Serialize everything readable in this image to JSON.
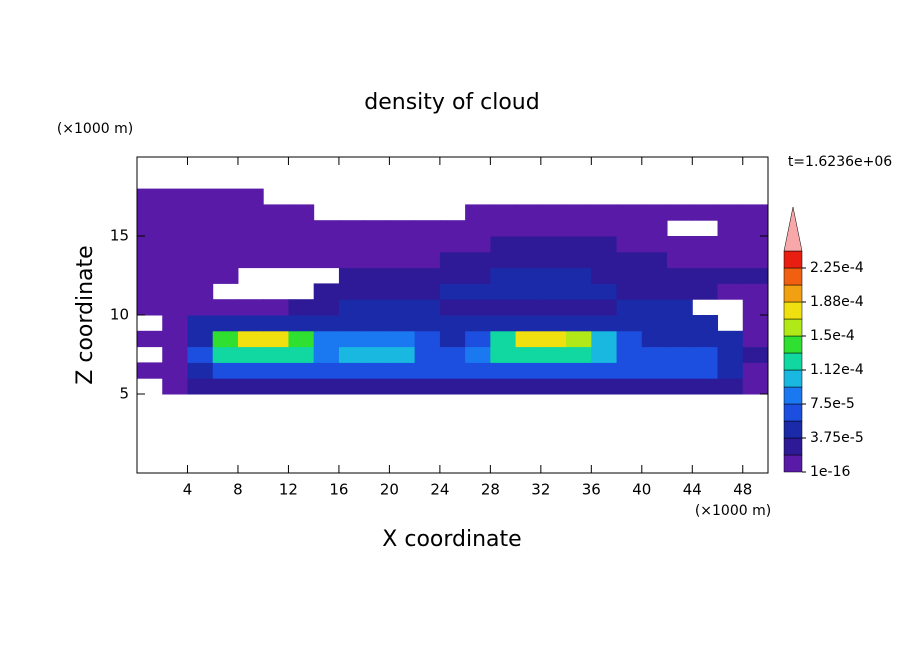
{
  "chart_data": {
    "type": "contour",
    "title": "density of cloud",
    "x_label": "X coordinate",
    "y_label": "Z coordinate",
    "x_unit": "(×1000 m)",
    "y_unit": "(×1000 m)",
    "annotation": "t=1.6236e+06",
    "xlim": [
      0,
      50
    ],
    "ylim": [
      0,
      20
    ],
    "xticks": [
      4,
      8,
      12,
      16,
      20,
      24,
      28,
      32,
      36,
      40,
      44,
      48
    ],
    "yticks": [
      5,
      10,
      15
    ],
    "x": [
      1,
      3,
      5,
      7,
      9,
      11,
      13,
      15,
      17,
      19,
      21,
      23,
      25,
      27,
      29,
      31,
      33,
      35,
      37,
      39,
      41,
      43,
      45,
      47,
      49
    ],
    "z": [
      5.5,
      6.5,
      7.5,
      8.5,
      9.5,
      10.5,
      11.5,
      12.5,
      13.5,
      14.5,
      15.5,
      16.5,
      17.5
    ],
    "values": [
      [
        null,
        5e-06,
        2e-05,
        2e-05,
        2e-05,
        2e-05,
        2e-05,
        2e-05,
        2e-05,
        2e-05,
        2e-05,
        2e-05,
        2e-05,
        2e-05,
        2e-05,
        2e-05,
        2e-05,
        2e-05,
        2e-05,
        2e-05,
        2e-05,
        2e-05,
        2e-05,
        2e-05,
        5e-06
      ],
      [
        5e-06,
        5e-06,
        4e-05,
        6e-05,
        6e-05,
        6e-05,
        6e-05,
        6e-05,
        6e-05,
        6e-05,
        6e-05,
        6e-05,
        6e-05,
        6e-05,
        6e-05,
        6e-05,
        6e-05,
        6e-05,
        6e-05,
        6e-05,
        6e-05,
        6e-05,
        6e-05,
        4e-05,
        5e-06
      ],
      [
        null,
        5e-06,
        6e-05,
        0.00013,
        0.00013,
        0.00013,
        0.00013,
        9e-05,
        0.0001,
        0.0001,
        0.0001,
        7e-05,
        6e-05,
        8e-05,
        0.00013,
        0.00013,
        0.00013,
        0.00013,
        0.0001,
        7e-05,
        7e-05,
        7e-05,
        7e-05,
        5e-05,
        2e-05
      ],
      [
        5e-06,
        5e-06,
        4e-05,
        0.00014,
        0.00017,
        0.00017,
        0.00014,
        8e-05,
        9e-05,
        9e-05,
        9e-05,
        6e-05,
        5e-05,
        6e-05,
        0.00012,
        0.00017,
        0.00017,
        0.00016,
        0.0001,
        6e-05,
        4e-05,
        4e-05,
        4e-05,
        4e-05,
        5e-06
      ],
      [
        null,
        5e-06,
        4e-05,
        4e-05,
        4e-05,
        4e-05,
        4e-05,
        4e-05,
        4e-05,
        4e-05,
        4e-05,
        4e-05,
        4e-05,
        4e-05,
        4e-05,
        4e-05,
        4e-05,
        4e-05,
        4e-05,
        4e-05,
        4e-05,
        4e-05,
        4e-05,
        null,
        5e-06
      ],
      [
        5e-06,
        5e-06,
        5e-06,
        5e-06,
        5e-06,
        5e-06,
        2e-05,
        2e-05,
        4e-05,
        4e-05,
        4e-05,
        4e-05,
        2e-05,
        2e-05,
        2e-05,
        2e-05,
        2e-05,
        2e-05,
        2e-05,
        4e-05,
        4e-05,
        4e-05,
        null,
        null,
        5e-06
      ],
      [
        5e-06,
        5e-06,
        5e-06,
        null,
        null,
        null,
        null,
        2e-05,
        2e-05,
        2e-05,
        2e-05,
        2e-05,
        4e-05,
        4e-05,
        4e-05,
        4e-05,
        4e-05,
        4e-05,
        4e-05,
        2e-05,
        2e-05,
        2e-05,
        2e-05,
        5e-06,
        5e-06
      ],
      [
        5e-06,
        5e-06,
        5e-06,
        5e-06,
        null,
        null,
        null,
        null,
        2e-05,
        2e-05,
        2e-05,
        2e-05,
        2e-05,
        2e-05,
        4e-05,
        4e-05,
        4e-05,
        4e-05,
        2e-05,
        2e-05,
        2e-05,
        2e-05,
        2e-05,
        2e-05,
        2e-05
      ],
      [
        5e-06,
        5e-06,
        5e-06,
        5e-06,
        5e-06,
        5e-06,
        5e-06,
        5e-06,
        5e-06,
        5e-06,
        5e-06,
        5e-06,
        2e-05,
        2e-05,
        2e-05,
        2e-05,
        2e-05,
        2e-05,
        2e-05,
        2e-05,
        2e-05,
        5e-06,
        5e-06,
        5e-06,
        5e-06
      ],
      [
        5e-06,
        5e-06,
        5e-06,
        5e-06,
        5e-06,
        5e-06,
        5e-06,
        5e-06,
        5e-06,
        5e-06,
        5e-06,
        5e-06,
        5e-06,
        5e-06,
        2e-05,
        2e-05,
        2e-05,
        2e-05,
        2e-05,
        5e-06,
        5e-06,
        5e-06,
        5e-06,
        5e-06,
        5e-06
      ],
      [
        5e-06,
        5e-06,
        5e-06,
        5e-06,
        5e-06,
        5e-06,
        5e-06,
        5e-06,
        5e-06,
        5e-06,
        5e-06,
        5e-06,
        5e-06,
        5e-06,
        5e-06,
        5e-06,
        5e-06,
        5e-06,
        5e-06,
        5e-06,
        5e-06,
        null,
        null,
        5e-06,
        5e-06
      ],
      [
        5e-06,
        5e-06,
        5e-06,
        5e-06,
        5e-06,
        5e-06,
        5e-06,
        null,
        null,
        null,
        null,
        null,
        null,
        5e-06,
        5e-06,
        5e-06,
        5e-06,
        5e-06,
        5e-06,
        5e-06,
        5e-06,
        5e-06,
        5e-06,
        5e-06,
        5e-06
      ],
      [
        5e-06,
        5e-06,
        5e-06,
        5e-06,
        5e-06,
        null,
        null,
        null,
        null,
        null,
        null,
        null,
        null,
        null,
        null,
        null,
        null,
        null,
        null,
        null,
        null,
        null,
        null,
        null,
        null
      ]
    ],
    "colorbar": {
      "levels": [
        1e-16,
        1.875e-05,
        3.75e-05,
        5.625e-05,
        7.5e-05,
        9.375e-05,
        0.0001125,
        0.00013125,
        0.00015,
        0.00016875,
        0.0001875,
        0.00020625,
        0.000225,
        0.00024375
      ],
      "colors": [
        "#5a1aa8",
        "#2e1a96",
        "#1a2aa8",
        "#1c4fe0",
        "#1a78f0",
        "#18b8e0",
        "#10d8a0",
        "#30e030",
        "#b0e818",
        "#f0e010",
        "#f0a010",
        "#f06010",
        "#e81e10"
      ],
      "over_color": "#f8a8a8",
      "ticks": [
        {
          "value": 1e-16,
          "label": "1e-16"
        },
        {
          "value": 3.75e-05,
          "label": "3.75e-5"
        },
        {
          "value": 7.5e-05,
          "label": "7.5e-5"
        },
        {
          "value": 0.0001125,
          "label": "1.12e-4"
        },
        {
          "value": 0.00015,
          "label": "1.5e-4"
        },
        {
          "value": 0.0001875,
          "label": "1.88e-4"
        },
        {
          "value": 0.000225,
          "label": "2.25e-4"
        }
      ]
    }
  }
}
